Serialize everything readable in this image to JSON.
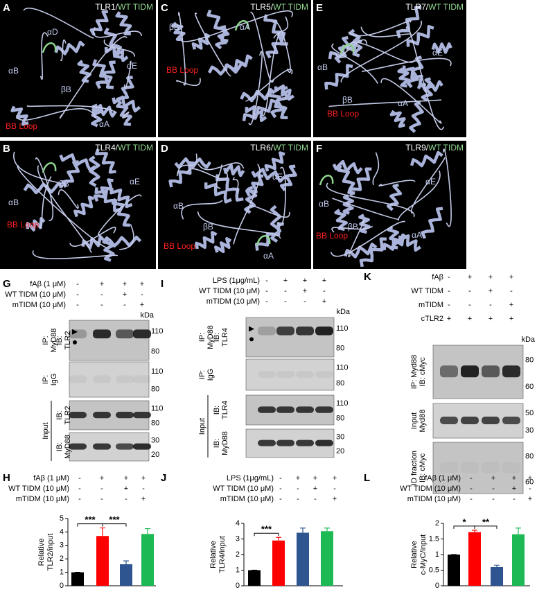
{
  "structures": [
    {
      "letter": "A",
      "protein": "TLR1/",
      "ligand": "WT TIDM",
      "labels": [
        "αD",
        "αE",
        "αB",
        "βB",
        "αA"
      ],
      "loop": "BB Loop"
    },
    {
      "letter": "B",
      "protein": "TLR4/",
      "ligand": "WT TIDM",
      "labels": [
        "αE",
        "αB",
        "βB"
      ],
      "loop": "BB Loop"
    },
    {
      "letter": "C",
      "protein": "TLR5/",
      "ligand": "WT TIDM",
      "labels": [
        "βB",
        "αA"
      ],
      "loop": "BB Loop"
    },
    {
      "letter": "D",
      "protein": "TLR6/",
      "ligand": "WT TIDM",
      "labels": [
        "αE",
        "αB",
        "βB",
        "αA"
      ],
      "loop": "BB Loop"
    },
    {
      "letter": "E",
      "protein": "TLR7/",
      "ligand": "WT TIDM",
      "labels": [
        "αE",
        "αB",
        "βB",
        "αA"
      ],
      "loop": "BB Loop"
    },
    {
      "letter": "F",
      "protein": "TLR9/",
      "ligand": "WT TIDM",
      "labels": [
        "αE",
        "αB",
        "βB",
        "αA"
      ],
      "loop": "BB Loop"
    }
  ],
  "blots": [
    {
      "letter": "G",
      "unit": "kDa",
      "group": "Input",
      "conditions": [
        {
          "label": "fAβ (1 μM)",
          "marks": [
            "-",
            "+",
            "+",
            "+"
          ]
        },
        {
          "label": "WT TIDM (10 μM)",
          "marks": [
            "-",
            "-",
            "+",
            "-"
          ]
        },
        {
          "label": "mTIDM (10 μM)",
          "marks": [
            "-",
            "-",
            "-",
            "+"
          ]
        }
      ],
      "sections": [
        {
          "outer": [
            "IP:",
            "MyD88"
          ],
          "probe": [
            "IB:",
            "TLR2"
          ],
          "markers": [
            110,
            80
          ]
        },
        {
          "outer": [
            "IP:",
            "IgG"
          ],
          "markers": [
            110,
            80
          ]
        },
        {
          "probe": [
            "IB:",
            "TLR2"
          ],
          "markers": [
            110,
            80
          ]
        },
        {
          "probe": [
            "IB:",
            "MyD88"
          ],
          "markers": [
            30,
            20
          ]
        }
      ]
    },
    {
      "letter": "I",
      "unit": "kDa",
      "group": "Input",
      "conditions": [
        {
          "label": "LPS (1μg/mL)",
          "marks": [
            "-",
            "+",
            "+",
            "+"
          ]
        },
        {
          "label": "WT TIDM (10 μM)",
          "marks": [
            "-",
            "-",
            "+",
            "-"
          ]
        },
        {
          "label": "mTIDM (10 μM)",
          "marks": [
            "-",
            "-",
            "-",
            "+"
          ]
        }
      ],
      "sections": [
        {
          "outer": [
            "IP:",
            "MyD88"
          ],
          "probe": [
            "IB:",
            "TLR4"
          ],
          "markers": [
            110,
            80
          ]
        },
        {
          "outer": [
            "IP:",
            "IgG"
          ],
          "markers": [
            110,
            80
          ]
        },
        {
          "probe": [
            "IB:",
            "TLR4"
          ],
          "markers": [
            110,
            80
          ]
        },
        {
          "probe": [
            "IB:",
            "MyD88"
          ],
          "markers": [
            30,
            20
          ]
        }
      ]
    },
    {
      "letter": "K",
      "unit": "kDa",
      "conditions": [
        {
          "label": "fAβ",
          "marks": [
            "-",
            "+",
            "+",
            "+"
          ]
        },
        {
          "label": "WT TIDM",
          "marks": [
            "-",
            "-",
            "+",
            "-"
          ]
        },
        {
          "label": "mTIDM",
          "marks": [
            "-",
            "-",
            "-",
            "+"
          ]
        },
        {
          "label": "cTLR2",
          "marks": [
            "+",
            "+",
            "+",
            "+"
          ]
        }
      ],
      "sections": [
        {
          "outer": [
            "IP: Myd88",
            "IB: cMyc"
          ],
          "markers": [
            80,
            60
          ]
        },
        {
          "outer": [
            "Input",
            "Myd88"
          ],
          "markers": [
            50,
            30
          ]
        },
        {
          "outer": [
            "ID fraction",
            "IB: cMyc"
          ],
          "markers": [
            80,
            60
          ]
        }
      ]
    }
  ],
  "chart_data": [
    {
      "type": "bar",
      "letter": "H",
      "ylabel": [
        "Relative",
        "TLR2/input"
      ],
      "conditions": [
        {
          "label": "fAβ (1 μM)",
          "marks": [
            "-",
            "+",
            "+",
            "+"
          ]
        },
        {
          "label": "WT TIDM (10 μM)",
          "marks": [
            "-",
            "-",
            "+",
            "-"
          ]
        },
        {
          "label": "mTIDM (10 μM)",
          "marks": [
            "-",
            "-",
            "-",
            "+"
          ]
        }
      ],
      "ylim": [
        0,
        5
      ],
      "yticks": [
        0,
        1,
        2,
        3,
        4,
        5
      ],
      "series": [
        {
          "values": [
            1,
            3.7,
            1.6,
            3.85
          ],
          "errors": [
            0,
            0.6,
            0.25,
            0.4
          ],
          "colors": [
            "#000000",
            "#ff0000",
            "#2e5590",
            "#1db954"
          ]
        }
      ],
      "significance": [
        "***",
        "***"
      ]
    },
    {
      "type": "bar",
      "letter": "J",
      "ylabel": [
        "Relative",
        "TLR4/input"
      ],
      "conditions": [
        {
          "label": "LPS (1μg/mL)",
          "marks": [
            "-",
            "+",
            "+",
            "+"
          ]
        },
        {
          "label": "WT TIDM (10 μM)",
          "marks": [
            "-",
            "-",
            "+",
            "-"
          ]
        },
        {
          "label": "mTIDM (10 μM)",
          "marks": [
            "-",
            "-",
            "-",
            "+"
          ]
        }
      ],
      "ylim": [
        0,
        4
      ],
      "yticks": [
        0,
        1,
        2,
        3,
        4
      ],
      "series": [
        {
          "values": [
            1,
            2.9,
            3.4,
            3.5
          ],
          "errors": [
            0,
            0.2,
            0.3,
            0.2
          ],
          "colors": [
            "#000000",
            "#ff0000",
            "#2e5590",
            "#1db954"
          ]
        }
      ],
      "significance": [
        "***"
      ]
    },
    {
      "type": "bar",
      "letter": "L",
      "ylabel": [
        "Relative",
        "c-MyC/input"
      ],
      "conditions": [
        {
          "label": "fAβ (1 μM)",
          "marks": [
            "-",
            "+",
            "+",
            "+"
          ]
        },
        {
          "label": "WT TIDM (10 μM)",
          "marks": [
            "-",
            "-",
            "+",
            "-"
          ]
        },
        {
          "label": "mTIDM (10 μM)",
          "marks": [
            "-",
            "-",
            "-",
            "+"
          ]
        }
      ],
      "ylim": [
        0,
        2
      ],
      "yticks": [
        0,
        0.5,
        1,
        1.5,
        2
      ],
      "series": [
        {
          "values": [
            1,
            1.72,
            0.6,
            1.65
          ],
          "errors": [
            0,
            0.06,
            0.06,
            0.2
          ],
          "colors": [
            "#000000",
            "#ff0000",
            "#2e5590",
            "#1db954"
          ]
        }
      ],
      "significance": [
        "*",
        "**"
      ]
    }
  ]
}
